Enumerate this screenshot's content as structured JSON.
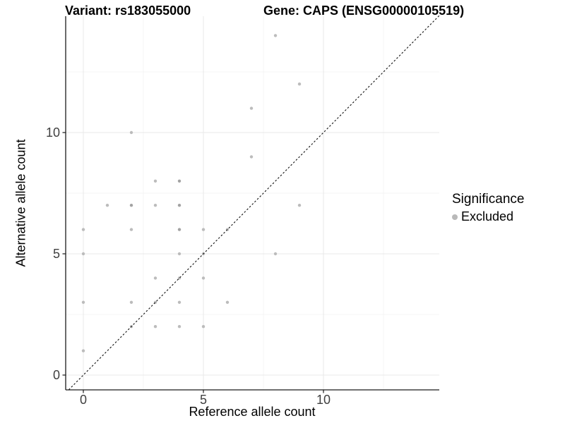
{
  "titles": {
    "left": "Variant: rs183055000",
    "right": "Gene: CAPS (ENSG00000105519)"
  },
  "axes": {
    "x_label": "Reference allele count",
    "y_label": "Alternative allele count"
  },
  "legend": {
    "title": "Significance",
    "items": [
      {
        "label": "Excluded",
        "color": "#b9b9b9"
      }
    ]
  },
  "colors": {
    "point": "#bcbcbc",
    "point_overplotted": "#a3a3a3",
    "grid_major": "#e9e9e9",
    "grid_minor": "#f4f4f4",
    "axis_line": "#1a1a1a",
    "tick_label": "#404040",
    "identity_line": "#111111"
  },
  "chart_data": {
    "type": "scatter",
    "title_left": "Variant: rs183055000",
    "title_right": "Gene: CAPS (ENSG00000105519)",
    "xlabel": "Reference allele count",
    "ylabel": "Alternative allele count",
    "xlim": [
      -0.75,
      14.8
    ],
    "ylim": [
      -0.6,
      14.8
    ],
    "x_major_ticks": [
      0,
      5,
      10
    ],
    "y_major_ticks": [
      0,
      5,
      10
    ],
    "x_minor_gridlines": [
      2.5,
      7.5,
      12.5
    ],
    "y_minor_gridlines": [
      2.5,
      7.5,
      12.5
    ],
    "grid": true,
    "legend_position": "right",
    "identity_line": {
      "slope": 1,
      "intercept": 0,
      "style": "dashed"
    },
    "series": [
      {
        "name": "Excluded",
        "points": [
          [
            0,
            1
          ],
          [
            0,
            3
          ],
          [
            0,
            5
          ],
          [
            0,
            6
          ],
          [
            1,
            7
          ],
          [
            2,
            2
          ],
          [
            2,
            3
          ],
          [
            2,
            6
          ],
          [
            2,
            7
          ],
          [
            2,
            10
          ],
          [
            3,
            2
          ],
          [
            3,
            3
          ],
          [
            3,
            4
          ],
          [
            3,
            7
          ],
          [
            3,
            8
          ],
          [
            4,
            2
          ],
          [
            4,
            3
          ],
          [
            4,
            4
          ],
          [
            4,
            5
          ],
          [
            4,
            6
          ],
          [
            4,
            7
          ],
          [
            4,
            8
          ],
          [
            5,
            2
          ],
          [
            5,
            4
          ],
          [
            5,
            5
          ],
          [
            5,
            6
          ],
          [
            6,
            3
          ],
          [
            6,
            6
          ],
          [
            7,
            9
          ],
          [
            7,
            11
          ],
          [
            8,
            5
          ],
          [
            8,
            14
          ],
          [
            9,
            7
          ],
          [
            9,
            12
          ]
        ],
        "overplotted_points": [
          [
            2,
            7
          ],
          [
            4,
            6
          ],
          [
            4,
            7
          ],
          [
            4,
            8
          ]
        ]
      }
    ]
  }
}
